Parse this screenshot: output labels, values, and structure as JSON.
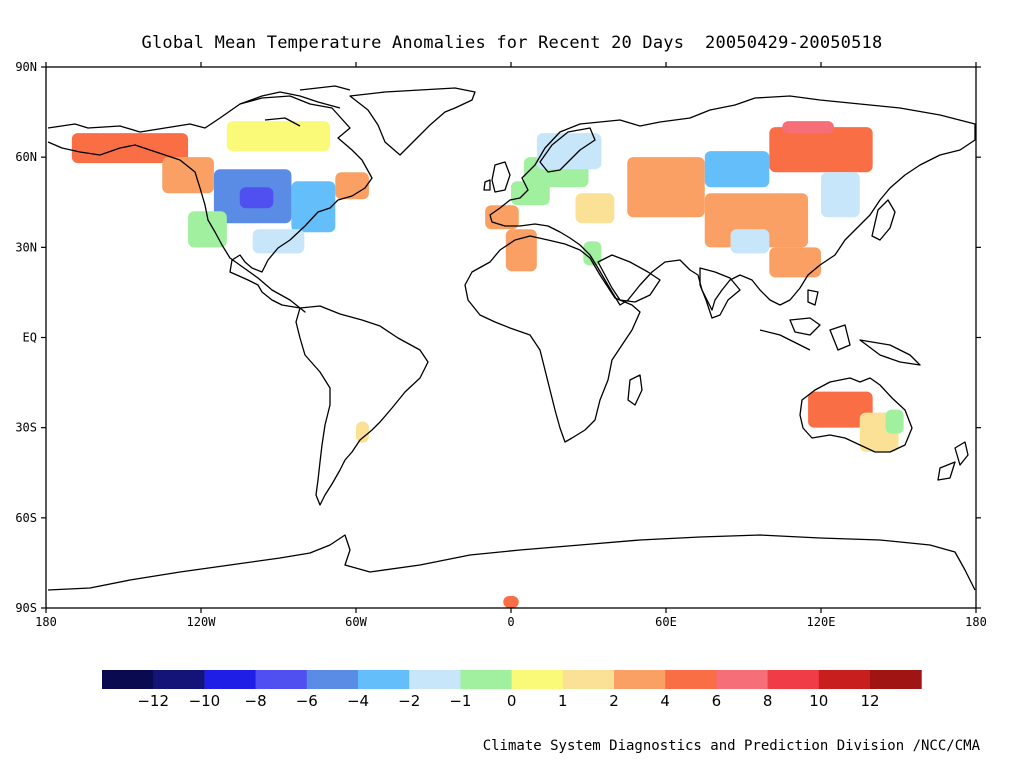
{
  "title": "Global Mean Temperature Anomalies for Recent 20 Days  20050429-20050518",
  "credit": "Climate System Diagnostics and Prediction Division /NCC/CMA",
  "lat_labels": [
    "90N",
    "60N",
    "30N",
    "EQ",
    "30S",
    "60S",
    "90S"
  ],
  "lon_labels": [
    "180",
    "120W",
    "60W",
    "0",
    "60E",
    "120E",
    "180"
  ],
  "colorbar": {
    "colors": [
      "#0a0a50",
      "#141478",
      "#1e1ee6",
      "#5050f0",
      "#5a8ce6",
      "#64befa",
      "#c8e6fa",
      "#a0f0a0",
      "#fafa78",
      "#fae196",
      "#faa064",
      "#fa6e46",
      "#f56e78",
      "#f03c46",
      "#c81e1e",
      "#a01414"
    ],
    "labels": [
      "-12",
      "-10",
      "-8",
      "-6",
      "-4",
      "-2",
      "-1",
      "0",
      "1",
      "2",
      "4",
      "6",
      "8",
      "10",
      "12"
    ]
  },
  "chart_data": {
    "type": "heatmap",
    "title": "Global Mean Temperature Anomalies for Recent 20 Days  20050429-20050518",
    "period": "20050429-20050518",
    "xlim": [
      -180,
      180
    ],
    "ylim": [
      -90,
      90
    ],
    "legend_levels": [
      -12,
      -10,
      -8,
      -6,
      -4,
      -2,
      -1,
      0,
      1,
      2,
      4,
      6,
      8,
      10,
      12
    ],
    "regions": [
      {
        "lon": [
          -170,
          -125
        ],
        "lat": [
          58,
          68
        ],
        "value": 5
      },
      {
        "lon": [
          -135,
          -115
        ],
        "lat": [
          48,
          60
        ],
        "value": 2
      },
      {
        "lon": [
          -115,
          -85
        ],
        "lat": [
          38,
          56
        ],
        "value": -5
      },
      {
        "lon": [
          -105,
          -92
        ],
        "lat": [
          43,
          50
        ],
        "value": -7
      },
      {
        "lon": [
          -85,
          -68
        ],
        "lat": [
          35,
          52
        ],
        "value": -3
      },
      {
        "lon": [
          -125,
          -110
        ],
        "lat": [
          30,
          42
        ],
        "value": -1
      },
      {
        "lon": [
          -100,
          -80
        ],
        "lat": [
          28,
          36
        ],
        "value": -1.5
      },
      {
        "lon": [
          -68,
          -55
        ],
        "lat": [
          46,
          55
        ],
        "value": 3
      },
      {
        "lon": [
          -110,
          -70
        ],
        "lat": [
          62,
          72
        ],
        "value": 0.5
      },
      {
        "lon": [
          -60,
          -55
        ],
        "lat": [
          -35,
          -28
        ],
        "value": 1
      },
      {
        "lon": [
          -10,
          3
        ],
        "lat": [
          36,
          44
        ],
        "value": 3
      },
      {
        "lon": [
          0,
          15
        ],
        "lat": [
          44,
          52
        ],
        "value": -1
      },
      {
        "lon": [
          5,
          30
        ],
        "lat": [
          50,
          60
        ],
        "value": -1
      },
      {
        "lon": [
          10,
          35
        ],
        "lat": [
          56,
          68
        ],
        "value": -2
      },
      {
        "lon": [
          25,
          40
        ],
        "lat": [
          38,
          48
        ],
        "value": 1
      },
      {
        "lon": [
          -2,
          10
        ],
        "lat": [
          22,
          36
        ],
        "value": 3
      },
      {
        "lon": [
          28,
          35
        ],
        "lat": [
          24,
          32
        ],
        "value": -1
      },
      {
        "lon": [
          45,
          75
        ],
        "lat": [
          40,
          60
        ],
        "value": 3
      },
      {
        "lon": [
          75,
          100
        ],
        "lat": [
          50,
          62
        ],
        "value": -3
      },
      {
        "lon": [
          100,
          140
        ],
        "lat": [
          55,
          70
        ],
        "value": 4
      },
      {
        "lon": [
          105,
          125
        ],
        "lat": [
          68,
          72
        ],
        "value": 6
      },
      {
        "lon": [
          75,
          115
        ],
        "lat": [
          30,
          48
        ],
        "value": 3
      },
      {
        "lon": [
          120,
          135
        ],
        "lat": [
          40,
          55
        ],
        "value": -2
      },
      {
        "lon": [
          85,
          100
        ],
        "lat": [
          28,
          36
        ],
        "value": -2
      },
      {
        "lon": [
          100,
          120
        ],
        "lat": [
          20,
          30
        ],
        "value": 2
      },
      {
        "lon": [
          115,
          140
        ],
        "lat": [
          -30,
          -18
        ],
        "value": 4
      },
      {
        "lon": [
          135,
          150
        ],
        "lat": [
          -38,
          -25
        ],
        "value": 1
      },
      {
        "lon": [
          145,
          152
        ],
        "lat": [
          -32,
          -24
        ],
        "value": -1
      },
      {
        "lon": [
          -3,
          3
        ],
        "lat": [
          -90,
          -86
        ],
        "value": 4
      }
    ]
  }
}
